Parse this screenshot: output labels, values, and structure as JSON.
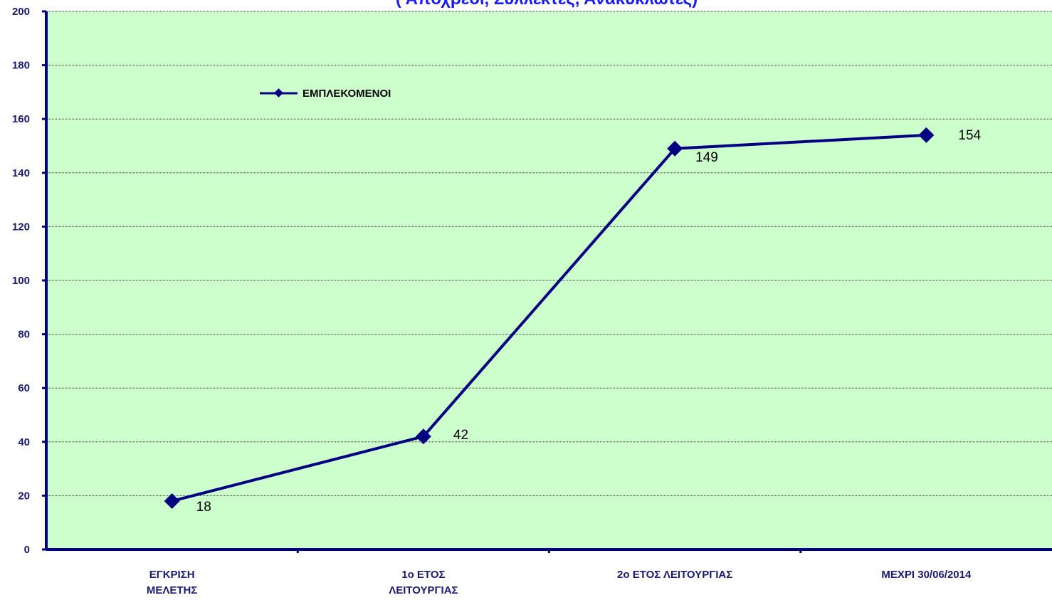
{
  "colors": {
    "plot_background": "#ccffcc",
    "series": "#000080",
    "axis": "#000080",
    "title": "#1a1aff",
    "tick_text": "#1a1a6e"
  },
  "chart_data": {
    "type": "line",
    "title": "( Απόχρεοι, Συλλέκτες, Ανακυκλωτές)",
    "categories": [
      "ΕΓΚΡΙΣΗ\nΜΕΛΕΤΗΣ",
      "1ο ΕΤΟΣ\nΛΕΙΤΟΥΡΓΙΑΣ",
      "2ο ΕΤΟΣ ΛΕΙΤΟΥΡΓΙΑΣ",
      "ΜΕΧΡΙ 30/06/2014"
    ],
    "series": [
      {
        "name": "ΕΜΠΛΕΚΟΜΕΝΟΙ",
        "values": [
          18,
          42,
          149,
          154
        ]
      }
    ],
    "data_labels": [
      "18",
      "42",
      "149",
      "154"
    ],
    "ylim": [
      0,
      200
    ],
    "yticks": [
      0,
      20,
      40,
      60,
      80,
      100,
      120,
      140,
      160,
      180,
      200
    ],
    "grid": true,
    "legend": "top-left",
    "marker": "diamond"
  }
}
